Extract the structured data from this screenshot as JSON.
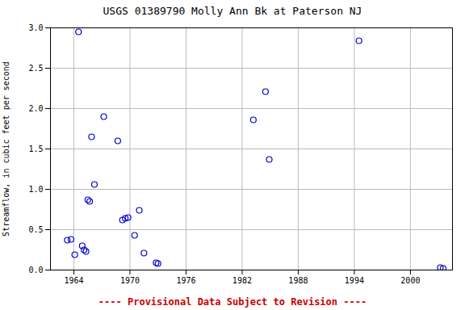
{
  "chart_data": {
    "type": "scatter",
    "title": "USGS 01389790 Molly Ann Bk at Paterson NJ",
    "ylabel": "Streamflow, in cubic feet per second",
    "annotation": "---- Provisional Data Subject to Revision ----",
    "x": [
      1963.3,
      1963.7,
      1964.1,
      1964.5,
      1964.9,
      1965.1,
      1965.3,
      1965.5,
      1965.7,
      1965.9,
      1966.2,
      1967.2,
      1968.7,
      1969.2,
      1969.5,
      1969.8,
      1970.5,
      1971.0,
      1971.5,
      1972.8,
      1973.0,
      1983.2,
      1984.5,
      1984.9,
      1994.5,
      2003.2,
      2003.5
    ],
    "values": [
      0.37,
      0.38,
      0.19,
      2.95,
      0.3,
      0.25,
      0.23,
      0.87,
      0.85,
      1.65,
      1.06,
      1.9,
      1.6,
      0.62,
      0.64,
      0.65,
      0.43,
      0.74,
      0.21,
      0.09,
      0.08,
      1.86,
      2.21,
      1.37,
      2.84,
      0.03,
      0.02
    ],
    "color": "#0000cc",
    "marker": "circle",
    "xlim": [
      1961.5,
      2004.5
    ],
    "ylim": [
      0.0,
      3.0
    ],
    "xticks": [
      1964,
      1970,
      1976,
      1982,
      1988,
      1994,
      2000
    ],
    "yticks": [
      {
        "value": 0.0,
        "label": "0.0"
      },
      {
        "value": 0.5,
        "label": "0.5"
      },
      {
        "value": 1.0,
        "label": "1.0"
      },
      {
        "value": 1.5,
        "label": "1.5"
      },
      {
        "value": 2.0,
        "label": "2.0"
      },
      {
        "value": 2.5,
        "label": "2.5"
      },
      {
        "value": 3.0,
        "label": "3.0"
      }
    ],
    "grid": true
  }
}
